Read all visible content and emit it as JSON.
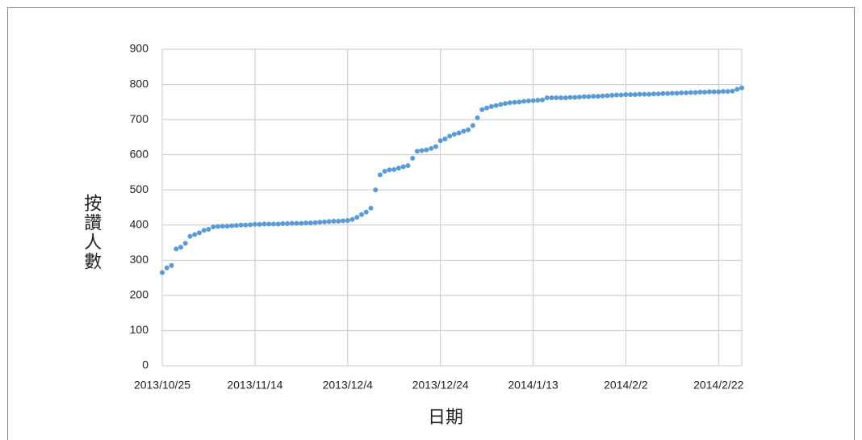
{
  "chart_data": {
    "type": "scatter",
    "y_label": "按讚人數",
    "x_label": "日期",
    "color": "#5b9bd5",
    "grid": true,
    "xlim": [
      "2013/10/25",
      "2014/2/27"
    ],
    "xticks": [
      "2013/10/25",
      "2013/11/14",
      "2013/12/4",
      "2013/12/24",
      "2014/1/13",
      "2014/2/2",
      "2014/2/22"
    ],
    "ylim": [
      0,
      900
    ],
    "yticks": [
      0,
      100,
      200,
      300,
      400,
      500,
      600,
      700,
      800,
      900
    ],
    "x": [
      "2013/10/25",
      "2013/10/26",
      "2013/10/27",
      "2013/10/28",
      "2013/10/29",
      "2013/10/30",
      "2013/10/31",
      "2013/11/1",
      "2013/11/2",
      "2013/11/3",
      "2013/11/4",
      "2013/11/5",
      "2013/11/6",
      "2013/11/7",
      "2013/11/8",
      "2013/11/9",
      "2013/11/10",
      "2013/11/11",
      "2013/11/12",
      "2013/11/13",
      "2013/11/14",
      "2013/11/15",
      "2013/11/16",
      "2013/11/17",
      "2013/11/18",
      "2013/11/19",
      "2013/11/20",
      "2013/11/21",
      "2013/11/22",
      "2013/11/23",
      "2013/11/24",
      "2013/11/25",
      "2013/11/26",
      "2013/11/27",
      "2013/11/28",
      "2013/11/29",
      "2013/11/30",
      "2013/12/1",
      "2013/12/2",
      "2013/12/3",
      "2013/12/4",
      "2013/12/5",
      "2013/12/6",
      "2013/12/7",
      "2013/12/8",
      "2013/12/9",
      "2013/12/10",
      "2013/12/11",
      "2013/12/12",
      "2013/12/13",
      "2013/12/14",
      "2013/12/15",
      "2013/12/16",
      "2013/12/17",
      "2013/12/18",
      "2013/12/19",
      "2013/12/20",
      "2013/12/21",
      "2013/12/22",
      "2013/12/23",
      "2013/12/24",
      "2013/12/25",
      "2013/12/26",
      "2013/12/27",
      "2013/12/28",
      "2013/12/29",
      "2013/12/30",
      "2013/12/31",
      "2014/1/1",
      "2014/1/2",
      "2014/1/3",
      "2014/1/4",
      "2014/1/5",
      "2014/1/6",
      "2014/1/7",
      "2014/1/8",
      "2014/1/9",
      "2014/1/10",
      "2014/1/11",
      "2014/1/12",
      "2014/1/13",
      "2014/1/14",
      "2014/1/15",
      "2014/1/16",
      "2014/1/17",
      "2014/1/18",
      "2014/1/19",
      "2014/1/20",
      "2014/1/21",
      "2014/1/22",
      "2014/1/23",
      "2014/1/24",
      "2014/1/25",
      "2014/1/26",
      "2014/1/27",
      "2014/1/28",
      "2014/1/29",
      "2014/1/30",
      "2014/1/31",
      "2014/2/1",
      "2014/2/2",
      "2014/2/3",
      "2014/2/4",
      "2014/2/5",
      "2014/2/6",
      "2014/2/7",
      "2014/2/8",
      "2014/2/9",
      "2014/2/10",
      "2014/2/11",
      "2014/2/12",
      "2014/2/13",
      "2014/2/14",
      "2014/2/15",
      "2014/2/16",
      "2014/2/17",
      "2014/2/18",
      "2014/2/19",
      "2014/2/20",
      "2014/2/21",
      "2014/2/22",
      "2014/2/23",
      "2014/2/24",
      "2014/2/25",
      "2014/2/26",
      "2014/2/27"
    ],
    "values": [
      265,
      278,
      285,
      332,
      337,
      348,
      368,
      373,
      378,
      385,
      388,
      395,
      396,
      397,
      397,
      398,
      399,
      400,
      400,
      401,
      402,
      402,
      403,
      403,
      403,
      403,
      404,
      404,
      405,
      405,
      405,
      406,
      406,
      407,
      408,
      409,
      410,
      411,
      411,
      412,
      413,
      416,
      422,
      430,
      437,
      448,
      500,
      543,
      553,
      557,
      558,
      562,
      566,
      569,
      590,
      610,
      612,
      614,
      618,
      623,
      640,
      645,
      653,
      658,
      662,
      667,
      671,
      683,
      705,
      728,
      733,
      737,
      740,
      743,
      746,
      748,
      749,
      750,
      752,
      753,
      754,
      755,
      756,
      762,
      762,
      762,
      762,
      762,
      763,
      763,
      764,
      765,
      765,
      766,
      766,
      767,
      768,
      769,
      770,
      770,
      771,
      771,
      771,
      772,
      772,
      772,
      773,
      773,
      774,
      774,
      775,
      775,
      776,
      776,
      777,
      777,
      778,
      778,
      779,
      779,
      779,
      780,
      780,
      781,
      786,
      790
    ]
  }
}
